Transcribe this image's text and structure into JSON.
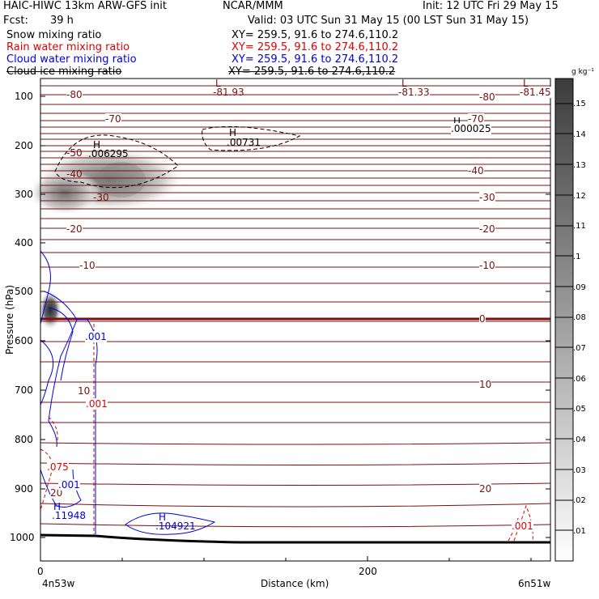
{
  "header": {
    "title": "HAIC-HIWC 13km ARW-GFS init",
    "org": "NCAR/MMM",
    "init": "Init: 12 UTC Fri 29 May 15",
    "fcst_label": "Fcst:",
    "fcst_value": "39 h",
    "valid": "Valid: 03 UTC Sun 31 May 15 (00 LST Sun 31 May 15)"
  },
  "fields": [
    {
      "name": "Snow mixing ratio",
      "xy": "XY= 259.5, 91.6 to 274.6,110.2",
      "color": "#000000"
    },
    {
      "name": "Rain water mixing ratio",
      "xy": "XY= 259.5, 91.6 to 274.6,110.2",
      "color": "#e00000"
    },
    {
      "name": "Cloud water mixing ratio",
      "xy": "XY= 259.5, 91.6 to 274.6,110.2",
      "color": "#0000dd"
    },
    {
      "name": "Cloud ice mixing ratio",
      "xy": "XY= 259.5, 91.6 to 274.6,110.2",
      "color": "#000000"
    }
  ],
  "chart_data": {
    "type": "heatmap",
    "xlabel": "Distance (km)",
    "ylabel": "Pressure (hPa)",
    "xlim": [
      0,
      300
    ],
    "ylim": [
      1050,
      50
    ],
    "x_ticks": [
      0,
      200
    ],
    "y_ticks": [
      100,
      200,
      300,
      400,
      500,
      600,
      700,
      800,
      900,
      1000
    ],
    "x_endpoints": [
      "4n53w",
      "6n51w"
    ],
    "colorbar": {
      "unit": "g kg⁻¹",
      "levels": [
        ".01",
        ".02",
        ".03",
        ".04",
        ".05",
        ".06",
        ".07",
        ".08",
        ".09",
        ".1",
        ".11",
        ".12",
        ".13",
        ".14",
        ".15"
      ]
    },
    "temperature_contours": [
      {
        "label": "-80",
        "p": 95
      },
      {
        "label": "-70",
        "p": 135
      },
      {
        "label": "-50",
        "p": 210
      },
      {
        "label": "-40",
        "p": 240
      },
      {
        "label": "-30",
        "p": 287
      },
      {
        "label": "-20",
        "p": 378
      },
      {
        "label": "-10",
        "p": 465
      },
      {
        "label": "0",
        "p": 554
      },
      {
        "label": "10",
        "p": 700
      },
      {
        "label": "20",
        "p": 880
      }
    ],
    "extrema": [
      {
        "kind": "L",
        "value": "-81.93",
        "x": 50,
        "p": 85
      },
      {
        "kind": "L",
        "value": "-81.33",
        "x": 224,
        "p": 85
      },
      {
        "kind": "L",
        "value": "-81.45",
        "x": 297,
        "p": 85
      },
      {
        "kind": "H",
        "value": ".00731",
        "x": 117,
        "p": 190
      },
      {
        "kind": "H",
        "value": ".000025",
        "x": 255,
        "p": 138
      },
      {
        "kind": "H",
        "value": ".006295",
        "x": 31,
        "p": 205
      },
      {
        "kind": "H",
        "value": ".11948",
        "x": 5,
        "p": 950
      },
      {
        "kind": "H",
        "value": ".104921",
        "x": 73,
        "p": 985
      }
    ],
    "contour_labels": [
      {
        "text": ".001",
        "x": 32,
        "p": 587,
        "color": "#0000dd"
      },
      {
        "text": ".001",
        "x": 33,
        "p": 720,
        "color": "#e00000"
      },
      {
        "text": ".001",
        "x": 8,
        "p": 893,
        "color": "#0000dd"
      },
      {
        "text": ".075",
        "x": 2,
        "p": 863,
        "color": "#e00000"
      },
      {
        "text": ".001",
        "x": 292,
        "p": 982,
        "color": "#e00000"
      }
    ]
  }
}
